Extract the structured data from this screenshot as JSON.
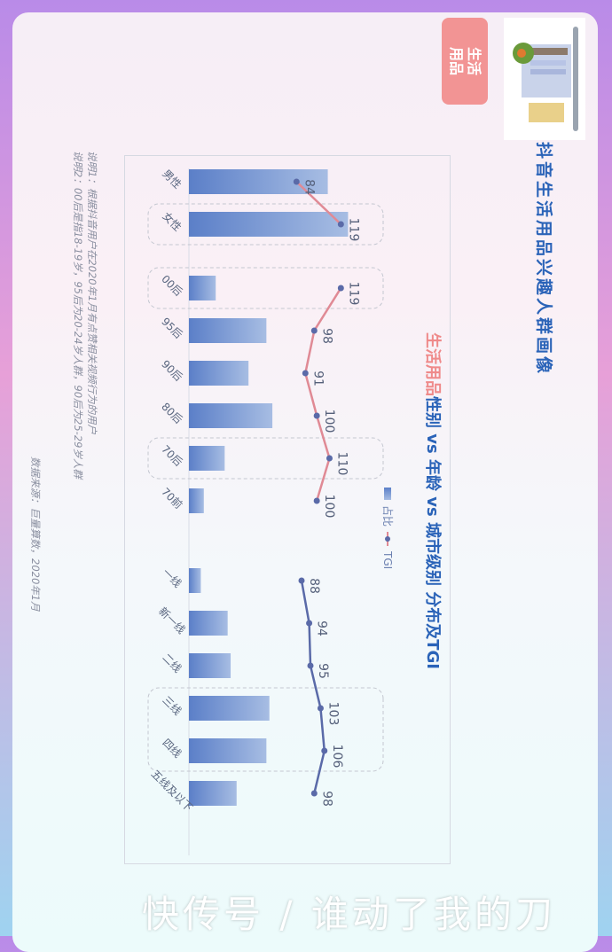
{
  "header": {
    "title": "抖音生活用品兴趣人群画像",
    "tag_line1": "生活",
    "tag_line2": "用品",
    "thumbnail_icon": "dish-rack-product-image"
  },
  "subtitle": {
    "highlight": "生活用品",
    "rest": "性别 vs 年龄 vs 城市级别 分布及TGI"
  },
  "legend": {
    "bar_label": "占比",
    "line_label": "TGI"
  },
  "notes": {
    "line1": "说明1：根据抖音用户在2020年1月有点赞相关视频行为的用户",
    "line2": "说明2：00后是指18-19岁，95后为20-24岁人群，90后为25-29岁人群",
    "source": "数据来源：巨量算数，2020年1月"
  },
  "watermark": "快传号 / 谁动了我的刀",
  "colors": {
    "title": "#2a63b8",
    "highlight": "#ef8a8a",
    "bar_start": "#5b7fc8",
    "bar_end": "#a7bde3",
    "line_pink": "#e08a95",
    "line_blue": "#5a6aa8",
    "point": "#5a6aa8"
  },
  "chart_data": {
    "type": "bar+line",
    "bar_series_name": "占比",
    "line_series_name": "TGI",
    "groups": [
      {
        "name": "gender",
        "categories": [
          "男性",
          "女性"
        ],
        "share_pct": [
          46.6,
          53.4
        ],
        "tgi": [
          84,
          119
        ],
        "highlighted": [
          "女性"
        ],
        "line_color": "#e08a95"
      },
      {
        "name": "age",
        "categories": [
          "00后",
          "95后",
          "90后",
          "80后",
          "70后",
          "70前"
        ],
        "share_pct": [
          9,
          26,
          20,
          28,
          12,
          5
        ],
        "tgi": [
          119,
          98,
          91,
          100,
          110,
          100
        ],
        "highlighted": [
          "00后",
          "70后"
        ],
        "line_color": "#e08a95"
      },
      {
        "name": "city",
        "categories": [
          "一线",
          "新一线",
          "二线",
          "三线",
          "四线",
          "五线及以下"
        ],
        "share_pct": [
          4,
          13,
          14,
          27,
          26,
          16
        ],
        "tgi": [
          88,
          94,
          95,
          103,
          106,
          98
        ],
        "highlighted": [
          "三线",
          "四线"
        ],
        "line_color": "#5a6aa8"
      }
    ]
  }
}
